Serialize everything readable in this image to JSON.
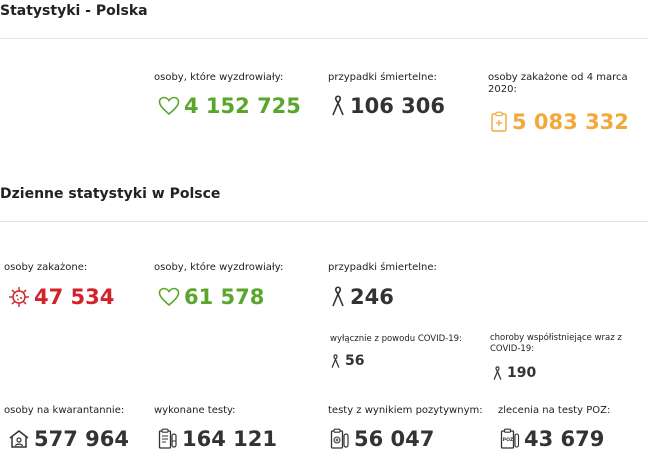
{
  "summary": {
    "title": "Statystyki - Polska",
    "recovered": {
      "label": "osoby, które wyzdrowiały:",
      "value": "4 152 725",
      "icon": "heart-icon"
    },
    "deaths": {
      "label": "przypadki śmiertelne:",
      "value": "106 306",
      "icon": "ribbon-icon"
    },
    "infected": {
      "label": "osoby zakażone od 4 marca 2020:",
      "value": "5 083 332",
      "icon": "clipboard-icon"
    }
  },
  "daily": {
    "title": "Dzienne statystyki w Polsce",
    "infected": {
      "label": "osoby zakażone:",
      "value": "47 534",
      "icon": "virus-icon"
    },
    "recovered": {
      "label": "osoby, które wyzdrowiały:",
      "value": "61 578",
      "icon": "heart-icon"
    },
    "deaths": {
      "label": "przypadki śmiertelne:",
      "value": "246",
      "icon": "ribbon-icon"
    },
    "deaths_covid_only": {
      "label": "wyłącznie z powodu COVID-19:",
      "value": "56",
      "icon": "ribbon-icon"
    },
    "deaths_comorbid": {
      "label": "choroby współistniejące wraz z COVID-19:",
      "value": "190",
      "icon": "ribbon-icon"
    },
    "quarantine": {
      "label": "osoby na kwarantannie:",
      "value": "577 964",
      "icon": "house-icon"
    },
    "tests": {
      "label": "wykonane testy:",
      "value": "164 121",
      "icon": "test-tube-icon"
    },
    "positive_tests": {
      "label": "testy z wynikiem pozytywnym:",
      "value": "56 047",
      "icon": "positive-test-icon"
    },
    "poz_orders": {
      "label": "zlecenia na testy POZ:",
      "value": "43 679",
      "icon": "poz-icon",
      "icon_text": "POZ"
    }
  },
  "colors": {
    "green": "#5aa62c",
    "red": "#d2232a",
    "orange": "#f2a93b",
    "dark": "#333333"
  }
}
